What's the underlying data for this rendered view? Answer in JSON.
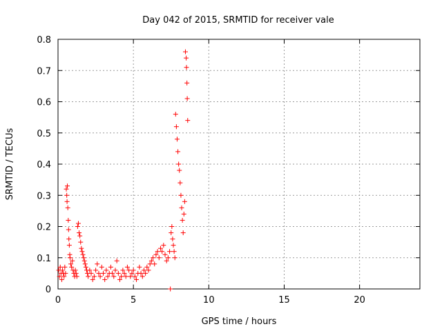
{
  "chart_data": {
    "type": "scatter",
    "title": "Day 042 of 2015, SRMTID for receiver vale",
    "xlabel": "GPS time / hours",
    "ylabel": "SRMTID / TECUs",
    "xlim": [
      0,
      24
    ],
    "ylim": [
      0,
      0.8
    ],
    "xticks": [
      0,
      5,
      10,
      15,
      20
    ],
    "yticks": [
      0,
      0.1,
      0.2,
      0.3,
      0.4,
      0.5,
      0.6,
      0.7,
      0.8
    ],
    "xtick_labels": [
      "0",
      "5",
      "10",
      "15",
      "20"
    ],
    "ytick_labels": [
      "0",
      "0.1",
      "0.2",
      "0.3",
      "0.4",
      "0.5",
      "0.6",
      "0.7",
      "0.8"
    ],
    "grid": true,
    "marker": "+",
    "series": [
      {
        "name": "SRMTID",
        "color": "#ff0000",
        "points": [
          [
            0.05,
            0.06
          ],
          [
            0.1,
            0.04
          ],
          [
            0.15,
            0.07
          ],
          [
            0.2,
            0.05
          ],
          [
            0.25,
            0.03
          ],
          [
            0.3,
            0.06
          ],
          [
            0.35,
            0.05
          ],
          [
            0.4,
            0.04
          ],
          [
            0.45,
            0.07
          ],
          [
            0.5,
            0.05
          ],
          [
            0.55,
            0.32
          ],
          [
            0.58,
            0.3
          ],
          [
            0.6,
            0.28
          ],
          [
            0.62,
            0.33
          ],
          [
            0.65,
            0.26
          ],
          [
            0.68,
            0.22
          ],
          [
            0.7,
            0.19
          ],
          [
            0.72,
            0.16
          ],
          [
            0.75,
            0.14
          ],
          [
            0.78,
            0.11
          ],
          [
            0.8,
            0.1
          ],
          [
            0.85,
            0.08
          ],
          [
            0.9,
            0.07
          ],
          [
            0.95,
            0.09
          ],
          [
            1.0,
            0.06
          ],
          [
            1.05,
            0.05
          ],
          [
            1.1,
            0.04
          ],
          [
            1.15,
            0.06
          ],
          [
            1.2,
            0.05
          ],
          [
            1.25,
            0.04
          ],
          [
            1.3,
            0.2
          ],
          [
            1.35,
            0.21
          ],
          [
            1.4,
            0.18
          ],
          [
            1.45,
            0.17
          ],
          [
            1.5,
            0.15
          ],
          [
            1.55,
            0.13
          ],
          [
            1.6,
            0.12
          ],
          [
            1.65,
            0.11
          ],
          [
            1.7,
            0.1
          ],
          [
            1.75,
            0.09
          ],
          [
            1.8,
            0.08
          ],
          [
            1.85,
            0.07
          ],
          [
            1.9,
            0.06
          ],
          [
            1.95,
            0.05
          ],
          [
            2.0,
            0.04
          ],
          [
            2.1,
            0.06
          ],
          [
            2.2,
            0.05
          ],
          [
            2.3,
            0.03
          ],
          [
            2.4,
            0.04
          ],
          [
            2.5,
            0.06
          ],
          [
            2.6,
            0.08
          ],
          [
            2.7,
            0.05
          ],
          [
            2.8,
            0.04
          ],
          [
            2.9,
            0.07
          ],
          [
            3.0,
            0.05
          ],
          [
            3.1,
            0.03
          ],
          [
            3.2,
            0.06
          ],
          [
            3.3,
            0.04
          ],
          [
            3.4,
            0.05
          ],
          [
            3.5,
            0.07
          ],
          [
            3.6,
            0.05
          ],
          [
            3.7,
            0.04
          ],
          [
            3.8,
            0.06
          ],
          [
            3.9,
            0.09
          ],
          [
            4.0,
            0.05
          ],
          [
            4.1,
            0.03
          ],
          [
            4.2,
            0.04
          ],
          [
            4.3,
            0.06
          ],
          [
            4.4,
            0.05
          ],
          [
            4.5,
            0.04
          ],
          [
            4.6,
            0.07
          ],
          [
            4.7,
            0.06
          ],
          [
            4.8,
            0.04
          ],
          [
            4.9,
            0.05
          ],
          [
            5.0,
            0.06
          ],
          [
            5.1,
            0.04
          ],
          [
            5.2,
            0.03
          ],
          [
            5.3,
            0.05
          ],
          [
            5.4,
            0.07
          ],
          [
            5.5,
            0.05
          ],
          [
            5.6,
            0.04
          ],
          [
            5.7,
            0.06
          ],
          [
            5.8,
            0.05
          ],
          [
            5.9,
            0.07
          ],
          [
            6.0,
            0.06
          ],
          [
            6.1,
            0.08
          ],
          [
            6.2,
            0.09
          ],
          [
            6.3,
            0.1
          ],
          [
            6.4,
            0.08
          ],
          [
            6.5,
            0.11
          ],
          [
            6.6,
            0.12
          ],
          [
            6.7,
            0.1
          ],
          [
            6.8,
            0.13
          ],
          [
            6.9,
            0.12
          ],
          [
            7.0,
            0.14
          ],
          [
            7.1,
            0.11
          ],
          [
            7.2,
            0.09
          ],
          [
            7.3,
            0.1
          ],
          [
            7.4,
            0.12
          ],
          [
            7.45,
            0.0
          ],
          [
            7.5,
            0.18
          ],
          [
            7.55,
            0.2
          ],
          [
            7.6,
            0.16
          ],
          [
            7.65,
            0.14
          ],
          [
            7.7,
            0.12
          ],
          [
            7.75,
            0.1
          ],
          [
            7.8,
            0.56
          ],
          [
            7.85,
            0.52
          ],
          [
            7.9,
            0.48
          ],
          [
            7.95,
            0.44
          ],
          [
            8.0,
            0.4
          ],
          [
            8.05,
            0.38
          ],
          [
            8.1,
            0.34
          ],
          [
            8.15,
            0.3
          ],
          [
            8.2,
            0.26
          ],
          [
            8.25,
            0.22
          ],
          [
            8.3,
            0.18
          ],
          [
            8.35,
            0.24
          ],
          [
            8.4,
            0.28
          ],
          [
            8.45,
            0.76
          ],
          [
            8.5,
            0.74
          ],
          [
            8.52,
            0.71
          ],
          [
            8.55,
            0.66
          ],
          [
            8.57,
            0.61
          ],
          [
            8.6,
            0.54
          ]
        ]
      }
    ]
  }
}
